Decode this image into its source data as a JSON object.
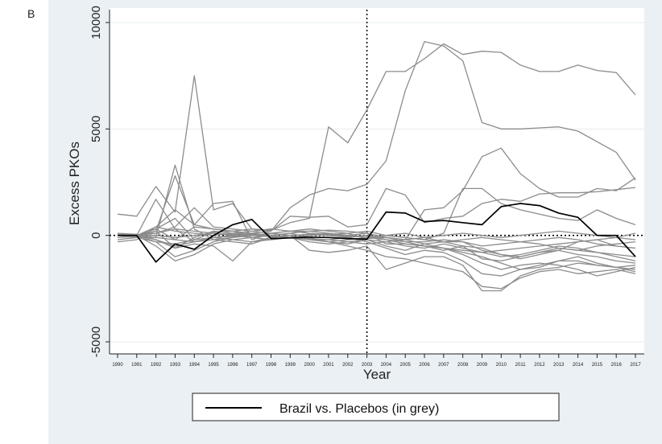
{
  "panel_label": "B",
  "colors": {
    "background": "#eaf0f4",
    "plot": "#ffffff",
    "placebo": "#8c8c8c",
    "treated": "#000000"
  },
  "chart_data": {
    "type": "line",
    "title": "",
    "xlabel": "Year",
    "ylabel": "Excess PKOs",
    "xlim": [
      1990,
      2017
    ],
    "ylim": [
      -5000,
      10000
    ],
    "y_ticks": [
      -5000,
      0,
      5000,
      10000
    ],
    "x_ticks": [
      1990,
      1991,
      1992,
      1993,
      1994,
      1995,
      1996,
      1997,
      1998,
      1999,
      2000,
      2001,
      2002,
      2003,
      2004,
      2005,
      2006,
      2007,
      2008,
      2009,
      2010,
      2011,
      2012,
      2013,
      2014,
      2015,
      2016,
      2017
    ],
    "vertical_reference_x": 2003,
    "horizontal_reference_y": 0,
    "grid": "horizontal",
    "legend": {
      "position": "bottom",
      "entries": [
        "Brazil vs. Placebos (in grey)"
      ]
    },
    "treated_series": {
      "values": [
        0,
        0,
        -1250,
        -400,
        -650,
        0,
        500,
        750,
        -150,
        -120,
        -80,
        -100,
        -150,
        -180,
        1100,
        1050,
        650,
        700,
        600,
        500,
        1350,
        1500,
        1400,
        1050,
        850,
        0,
        0,
        -1000
      ]
    },
    "placebo_series": [
      {
        "values": [
          1000,
          900,
          2300,
          1100,
          7500,
          1200,
          1500,
          300,
          200,
          1300,
          1900,
          2200,
          2100,
          2400,
          3500,
          6800,
          9100,
          8900,
          8200,
          5300,
          5000,
          5000,
          5050,
          5100,
          4900,
          4400,
          3900,
          2600
        ]
      },
      {
        "values": [
          -100,
          -50,
          300,
          800,
          -200,
          150,
          200,
          300,
          250,
          600,
          800,
          5100,
          4350,
          5900,
          7700,
          7700,
          8300,
          9000,
          8500,
          8650,
          8600,
          8000,
          7700,
          7700,
          8000,
          7750,
          7650,
          6600
        ]
      },
      {
        "values": [
          -200,
          -100,
          200,
          2800,
          500,
          1500,
          1600,
          -200,
          100,
          200,
          300,
          200,
          100,
          -150,
          -100,
          -200,
          1200,
          1300,
          2100,
          3700,
          4100,
          2900,
          2200,
          1800,
          1800,
          2200,
          2100,
          2700
        ]
      },
      {
        "values": [
          0,
          0,
          1700,
          300,
          -300,
          -200,
          -100,
          100,
          200,
          900,
          850,
          900,
          400,
          500,
          2200,
          1900,
          600,
          800,
          900,
          1500,
          1700,
          1600,
          1950,
          2000,
          2000,
          2050,
          2150,
          2250
        ]
      },
      {
        "values": [
          -300,
          -200,
          400,
          1200,
          500,
          300,
          200,
          0,
          100,
          200,
          200,
          100,
          0,
          -100,
          0,
          -100,
          -200,
          100,
          2200,
          2200,
          1500,
          1200,
          1000,
          800,
          700,
          1200,
          800,
          500
        ]
      },
      {
        "values": [
          0,
          -50,
          -100,
          3300,
          300,
          -200,
          -300,
          -400,
          -100,
          0,
          -200,
          -300,
          -400,
          -200,
          -500,
          -700,
          -400,
          -300,
          -300,
          -700,
          -900,
          -1000,
          -800,
          -600,
          -700,
          -500,
          -400,
          -300
        ]
      },
      {
        "values": [
          0,
          -100,
          -300,
          -1000,
          -700,
          -300,
          -100,
          0,
          100,
          200,
          100,
          0,
          -100,
          -300,
          -600,
          -900,
          -700,
          -800,
          -1200,
          -1800,
          -1900,
          -1600,
          -1400,
          -1200,
          -1200,
          -1400,
          -1500,
          -1700
        ]
      },
      {
        "values": [
          0,
          0,
          -500,
          -1200,
          -900,
          -400,
          -200,
          -100,
          0,
          100,
          -100,
          -300,
          -500,
          -700,
          -1000,
          -1100,
          -1300,
          -1500,
          -1700,
          -2400,
          -2500,
          -2000,
          -1700,
          -1600,
          -1800,
          -1700,
          -1600,
          -1800
        ]
      },
      {
        "values": [
          100,
          50,
          -200,
          -600,
          -400,
          -500,
          -1200,
          -300,
          -100,
          0,
          -700,
          -800,
          -700,
          -500,
          -1600,
          -1300,
          -1000,
          -1000,
          -1400,
          -2600,
          -2600,
          -1900,
          -1600,
          -1500,
          -1300,
          -1400,
          -1500,
          -1600
        ]
      },
      {
        "values": [
          0,
          0,
          100,
          400,
          1300,
          400,
          300,
          200,
          100,
          0,
          -200,
          -300,
          -200,
          -100,
          -200,
          -300,
          -500,
          -600,
          -800,
          -1000,
          -1300,
          -1600,
          -1500,
          -1200,
          -1000,
          -1300,
          -1500,
          -1400
        ]
      },
      {
        "values": [
          50,
          0,
          -100,
          -200,
          -300,
          -100,
          0,
          100,
          0,
          -100,
          -200,
          -200,
          -300,
          -400,
          -300,
          -200,
          -400,
          -600,
          -900,
          -1300,
          -1600,
          -1400,
          -1300,
          -1400,
          -1600,
          -1900,
          -1700,
          -1500
        ]
      },
      {
        "values": [
          0,
          0,
          200,
          -600,
          -100,
          200,
          100,
          50,
          0,
          100,
          200,
          250,
          200,
          100,
          -400,
          -400,
          -500,
          -700,
          -500,
          -600,
          -900,
          -1100,
          -900,
          -700,
          -300,
          -200,
          -500,
          -600
        ]
      },
      {
        "values": [
          0,
          0,
          -300,
          -400,
          -200,
          -100,
          -50,
          0,
          -50,
          -100,
          -150,
          -200,
          -100,
          0,
          -200,
          -400,
          -500,
          -600,
          -700,
          -800,
          -700,
          -600,
          -500,
          -400,
          -300,
          -200,
          -100,
          -200
        ]
      },
      {
        "values": [
          0,
          0,
          400,
          200,
          100,
          0,
          100,
          200,
          300,
          200,
          100,
          50,
          0,
          100,
          -100,
          -300,
          -300,
          -200,
          -300,
          -500,
          -400,
          -300,
          -200,
          -100,
          -200,
          -400,
          -500,
          -600
        ]
      },
      {
        "values": [
          0,
          0,
          100,
          300,
          200,
          100,
          0,
          -100,
          -200,
          -100,
          0,
          50,
          100,
          200,
          0,
          -100,
          -200,
          -300,
          -200,
          -100,
          -200,
          -300,
          -400,
          -600,
          -700,
          -800,
          -900,
          -1000
        ]
      },
      {
        "values": [
          0,
          0,
          0,
          -100,
          0,
          100,
          50,
          0,
          -50,
          0,
          50,
          0,
          -50,
          0,
          -100,
          -200,
          -100,
          0,
          100,
          0,
          -100,
          0,
          100,
          200,
          100,
          0,
          -100,
          100
        ]
      },
      {
        "values": [
          0,
          0,
          -200,
          -500,
          -300,
          -100,
          -200,
          -300,
          -200,
          -100,
          -300,
          -400,
          -300,
          -200,
          -300,
          -500,
          -600,
          -400,
          -600,
          -800,
          -1000,
          -900,
          -700,
          -500,
          -600,
          -800,
          -1000,
          -1200
        ]
      },
      {
        "values": [
          0,
          0,
          300,
          -200,
          400,
          300,
          200,
          100,
          0,
          -100,
          0,
          100,
          0,
          -100,
          0,
          100,
          -100,
          -300,
          -500,
          -1100,
          -1200,
          -1000,
          -800,
          -700,
          -900,
          -1000,
          -1200,
          -1300
        ]
      }
    ]
  }
}
